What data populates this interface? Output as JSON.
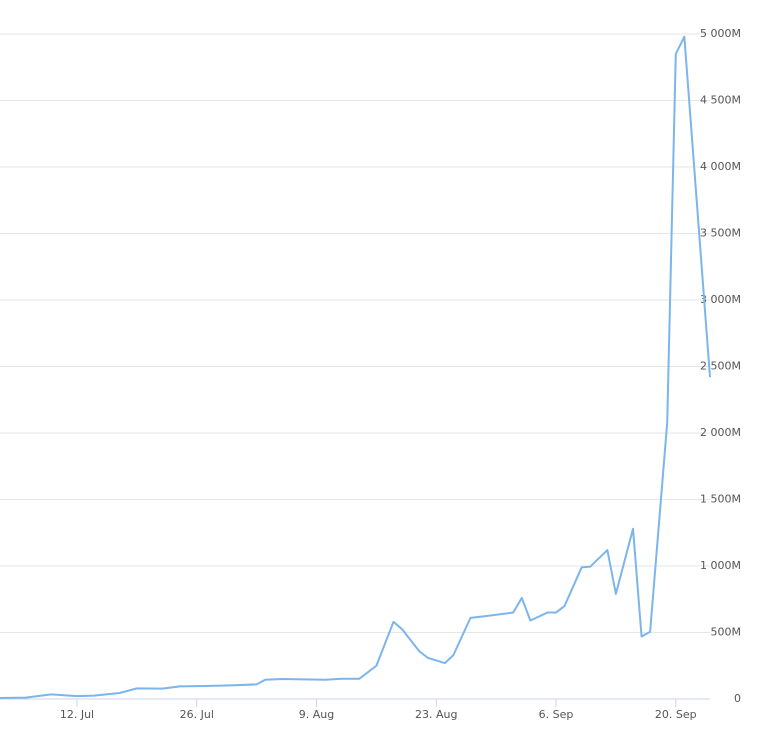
{
  "chart_data": {
    "type": "line",
    "x": [
      "07-03",
      "07-06",
      "07-09",
      "07-12",
      "07-14",
      "07-17",
      "07-19",
      "07-22",
      "07-24",
      "07-27",
      "07-30",
      "08-02",
      "08-03",
      "08-05",
      "08-10",
      "08-12",
      "08-14",
      "08-16",
      "08-18",
      "08-19",
      "08-21",
      "08-22",
      "08-24",
      "08-25",
      "08-27",
      "08-29",
      "09-01",
      "09-02",
      "09-03",
      "09-05",
      "09-06",
      "09-07",
      "09-09",
      "09-10",
      "09-12",
      "09-13",
      "09-15",
      "09-16",
      "09-17",
      "09-19",
      "09-20",
      "09-21",
      "09-24"
    ],
    "series": [
      {
        "color": "#7cb5ec",
        "values": [
          8,
          10,
          35,
          22,
          25,
          45,
          80,
          78,
          95,
          98,
          102,
          110,
          145,
          150,
          145,
          152,
          152,
          250,
          580,
          525,
          360,
          310,
          270,
          330,
          610,
          625,
          650,
          760,
          590,
          650,
          650,
          700,
          990,
          995,
          1120,
          790,
          1280,
          470,
          505,
          2080,
          4850,
          4980,
          2420
        ]
      }
    ],
    "xlim": [
      "07-03",
      "09-24"
    ],
    "xticks": [
      {
        "value": "07-12",
        "label": "12. Jul"
      },
      {
        "value": "07-26",
        "label": "26. Jul"
      },
      {
        "value": "08-09",
        "label": "9. Aug"
      },
      {
        "value": "08-23",
        "label": "23. Aug"
      },
      {
        "value": "09-06",
        "label": "6. Sep"
      },
      {
        "value": "09-20",
        "label": "20. Sep"
      }
    ],
    "ylim": [
      0,
      5000
    ],
    "yticks": [
      0,
      {
        "value": 500,
        "label": "500M"
      },
      {
        "value": 1000,
        "label": "1 000M"
      },
      {
        "value": 1500,
        "label": "1 500M"
      },
      {
        "value": 2000,
        "label": "2 000M"
      },
      {
        "value": 2500,
        "label": "2 500M"
      },
      {
        "value": 3000,
        "label": "3 000M"
      },
      {
        "value": 3500,
        "label": "3 500M"
      },
      {
        "value": 4000,
        "label": "4 000M"
      },
      {
        "value": 4500,
        "label": "4 500M"
      },
      {
        "value": 5000,
        "label": "5 000M"
      }
    ],
    "grid": true
  }
}
